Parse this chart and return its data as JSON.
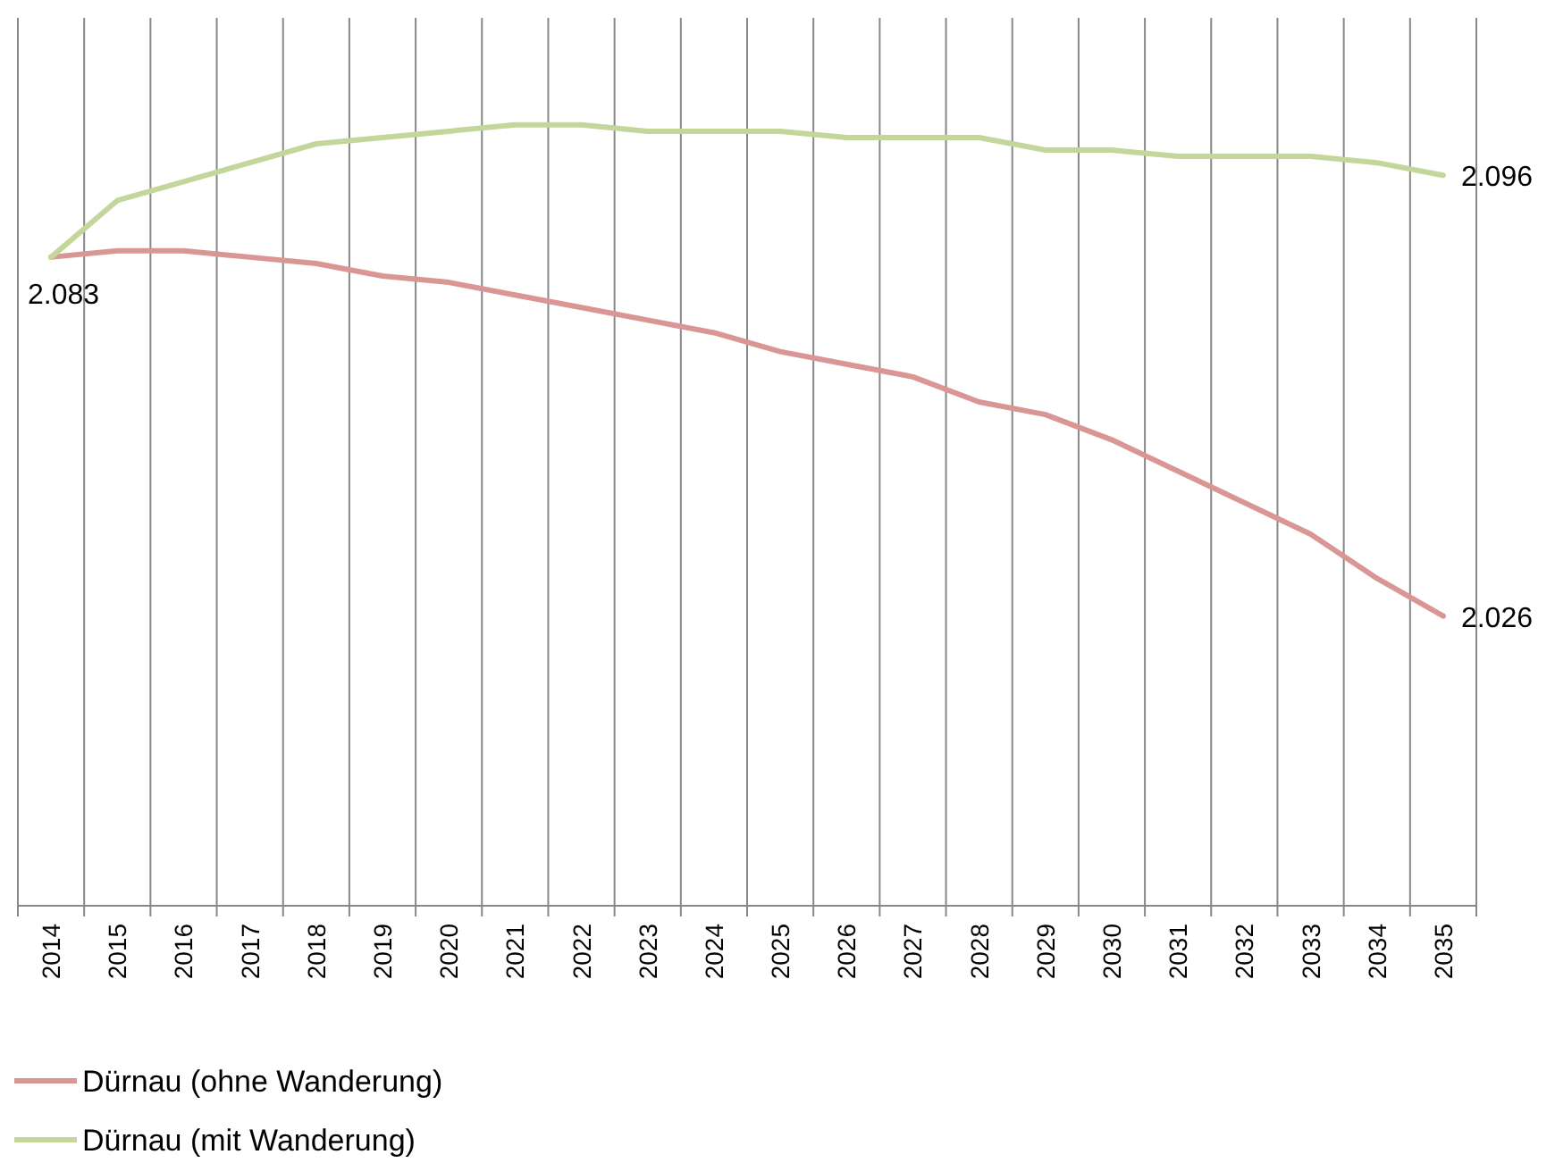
{
  "chart_data": {
    "type": "line",
    "categories": [
      "2014",
      "2015",
      "2016",
      "2017",
      "2018",
      "2019",
      "2020",
      "2021",
      "2022",
      "2023",
      "2024",
      "2025",
      "2026",
      "2027",
      "2028",
      "2029",
      "2030",
      "2031",
      "2032",
      "2033",
      "2034",
      "2035"
    ],
    "series": [
      {
        "name": "Dürnau (ohne Wanderung)",
        "color": "#d99694",
        "values": [
          2.083,
          2.084,
          2.084,
          2.083,
          2.082,
          2.08,
          2.079,
          2.077,
          2.075,
          2.073,
          2.071,
          2.068,
          2.066,
          2.064,
          2.06,
          2.058,
          2.054,
          2.049,
          2.044,
          2.039,
          2.032,
          2.026
        ],
        "value_labels": [
          "2.083",
          null,
          null,
          null,
          null,
          null,
          null,
          null,
          null,
          null,
          null,
          null,
          null,
          null,
          null,
          null,
          null,
          null,
          null,
          null,
          null,
          "2.026"
        ]
      },
      {
        "name": "Dürnau (mit Wanderung)",
        "color": "#c3d69b",
        "values": [
          2.083,
          2.092,
          2.095,
          2.098,
          2.101,
          2.102,
          2.103,
          2.104,
          2.104,
          2.103,
          2.103,
          2.103,
          2.102,
          2.102,
          2.102,
          2.1,
          2.1,
          2.099,
          2.099,
          2.099,
          2.098,
          2.096
        ],
        "value_labels": [
          null,
          null,
          null,
          null,
          null,
          null,
          null,
          null,
          null,
          null,
          null,
          null,
          null,
          null,
          null,
          null,
          null,
          null,
          null,
          null,
          null,
          "2.096"
        ]
      }
    ],
    "ylim": [
      1.98,
      2.121
    ],
    "tick_labels": "x",
    "grid": "x",
    "legend": "bottom left",
    "marker": "none",
    "line_style": "solid"
  }
}
